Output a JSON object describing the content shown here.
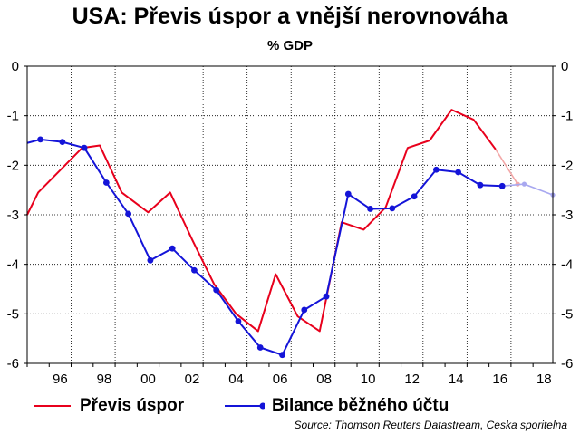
{
  "chart_data": {
    "type": "line",
    "title": "USA: Převis úspor a vnější nerovnováha",
    "subtitle": "% GDP",
    "x_ticks": [
      "96",
      "98",
      "00",
      "02",
      "04",
      "06",
      "08",
      "10",
      "12",
      "14",
      "16",
      "18"
    ],
    "y_ticks": [
      "0",
      "-1",
      "-2",
      "-3",
      "-4",
      "-5",
      "-6"
    ],
    "ylim": [
      -6,
      0
    ],
    "xlim": [
      1995.0,
      2018.9
    ],
    "grid": true,
    "legend_position": "bottom",
    "source": "Source: Thomson Reuters Datastream, Ceska sporitelna",
    "series": [
      {
        "name": "Převis úspor",
        "color": "#e8001c",
        "markers": false,
        "x": [
          1995.0,
          1995.5,
          1996.5,
          1997.5,
          1998.3,
          1999.3,
          2000.5,
          2001.5,
          2002.5,
          2003.5,
          2004.5,
          2005.5,
          2006.3,
          2007.3,
          2008.3,
          2009.3,
          2010.3,
          2011.3,
          2012.3,
          2013.3,
          2014.3,
          2015.3,
          2016.3
        ],
        "values": [
          -3.0,
          -2.55,
          -2.1,
          -1.65,
          -1.6,
          -2.55,
          -2.95,
          -2.55,
          -3.5,
          -4.4,
          -5.0,
          -5.35,
          -4.2,
          -5.05,
          -5.35,
          -3.15,
          -3.3,
          -2.85,
          -1.65,
          -1.5,
          -0.88,
          -1.08,
          -1.68
        ]
      },
      {
        "name": "Bilance běžného účtu",
        "color": "#1414d8",
        "markers": true,
        "x": [
          1995.0,
          1995.6,
          1996.6,
          1997.6,
          1998.6,
          1999.6,
          2000.6,
          2001.6,
          2002.6,
          2003.6,
          2004.6,
          2005.6,
          2006.6,
          2007.6,
          2008.6,
          2009.6,
          2010.6,
          2011.6,
          2012.6,
          2013.6,
          2014.6,
          2015.6,
          2016.6
        ],
        "values": [
          -1.55,
          -1.48,
          -1.53,
          -1.65,
          -2.35,
          -2.98,
          -3.92,
          -3.68,
          -4.12,
          -4.52,
          -5.15,
          -5.68,
          -5.83,
          -4.92,
          -4.65,
          -2.58,
          -2.88,
          -2.87,
          -2.63,
          -2.09,
          -2.14,
          -2.4,
          -2.42
        ]
      }
    ],
    "forecast_series": [
      {
        "name": "",
        "color": "#f3a8a8",
        "x": [
          2016.3,
          2017.3
        ],
        "values": [
          -1.68,
          -2.38
        ]
      },
      {
        "name": "",
        "color": "#a8a8f0",
        "x": [
          2016.6,
          2017.6,
          2018.9
        ],
        "values": [
          -2.42,
          -2.38,
          -2.6
        ]
      }
    ]
  }
}
